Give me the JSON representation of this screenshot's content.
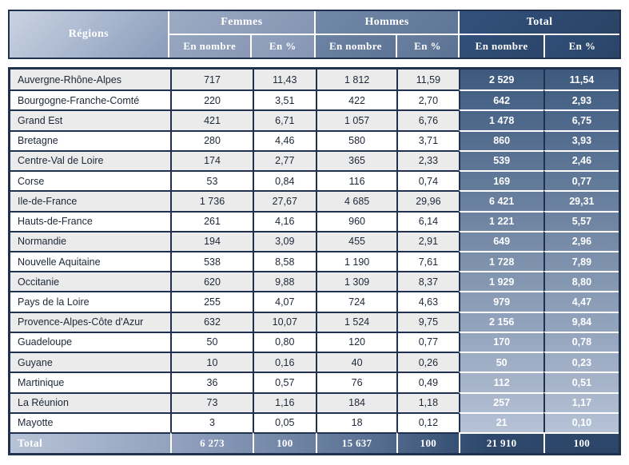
{
  "chart_data": {
    "type": "table",
    "header": {
      "regions": "Régions",
      "groups": [
        {
          "label": "Femmes",
          "subs": [
            "En nombre",
            "En %"
          ]
        },
        {
          "label": "Hommes",
          "subs": [
            "En nombre",
            "En %"
          ]
        },
        {
          "label": "Total",
          "subs": [
            "En nombre",
            "En %"
          ]
        }
      ]
    },
    "rows": [
      {
        "region": "Auvergne-Rhône-Alpes",
        "values": [
          "717",
          "11,43",
          "1 812",
          "11,59",
          "2 529",
          "11,54"
        ]
      },
      {
        "region": "Bourgogne-Franche-Comté",
        "values": [
          "220",
          "3,51",
          "422",
          "2,70",
          "642",
          "2,93"
        ]
      },
      {
        "region": "Grand Est",
        "values": [
          "421",
          "6,71",
          "1 057",
          "6,76",
          "1 478",
          "6,75"
        ]
      },
      {
        "region": "Bretagne",
        "values": [
          "280",
          "4,46",
          "580",
          "3,71",
          "860",
          "3,93"
        ]
      },
      {
        "region": "Centre-Val de Loire",
        "values": [
          "174",
          "2,77",
          "365",
          "2,33",
          "539",
          "2,46"
        ]
      },
      {
        "region": "Corse",
        "values": [
          "53",
          "0,84",
          "116",
          "0,74",
          "169",
          "0,77"
        ]
      },
      {
        "region": "Ile-de-France",
        "values": [
          "1 736",
          "27,67",
          "4 685",
          "29,96",
          "6 421",
          "29,31"
        ]
      },
      {
        "region": "Hauts-de-France",
        "values": [
          "261",
          "4,16",
          "960",
          "6,14",
          "1 221",
          "5,57"
        ]
      },
      {
        "region": "Normandie",
        "values": [
          "194",
          "3,09",
          "455",
          "2,91",
          "649",
          "2,96"
        ]
      },
      {
        "region": "Nouvelle Aquitaine",
        "values": [
          "538",
          "8,58",
          "1 190",
          "7,61",
          "1 728",
          "7,89"
        ]
      },
      {
        "region": "Occitanie",
        "values": [
          "620",
          "9,88",
          "1 309",
          "8,37",
          "1 929",
          "8,80"
        ]
      },
      {
        "region": "Pays de la Loire",
        "values": [
          "255",
          "4,07",
          "724",
          "4,63",
          "979",
          "4,47"
        ]
      },
      {
        "region": "Provence-Alpes-Côte d'Azur",
        "values": [
          "632",
          "10,07",
          "1 524",
          "9,75",
          "2 156",
          "9,84"
        ]
      },
      {
        "region": "Guadeloupe",
        "values": [
          "50",
          "0,80",
          "120",
          "0,77",
          "170",
          "0,78"
        ]
      },
      {
        "region": "Guyane",
        "values": [
          "10",
          "0,16",
          "40",
          "0,26",
          "50",
          "0,23"
        ]
      },
      {
        "region": "Martinique",
        "values": [
          "36",
          "0,57",
          "76",
          "0,49",
          "112",
          "0,51"
        ]
      },
      {
        "region": "La Réunion",
        "values": [
          "73",
          "1,16",
          "184",
          "1,18",
          "257",
          "1,17"
        ]
      },
      {
        "region": "Mayotte",
        "values": [
          "3",
          "0,05",
          "18",
          "0,12",
          "21",
          "0,10"
        ]
      }
    ],
    "total_row": {
      "label": "Total",
      "values": [
        "6 273",
        "100",
        "15 637",
        "100",
        "21 910",
        "100"
      ]
    }
  },
  "colors": {
    "border": "#20314f",
    "header_total_bg": "#2d486c",
    "total_col_top": "#3d5a7e",
    "total_col_bottom": "#b6c2d6",
    "alt_row_bg": "#ebebeb",
    "header_text": "#ffffff"
  }
}
